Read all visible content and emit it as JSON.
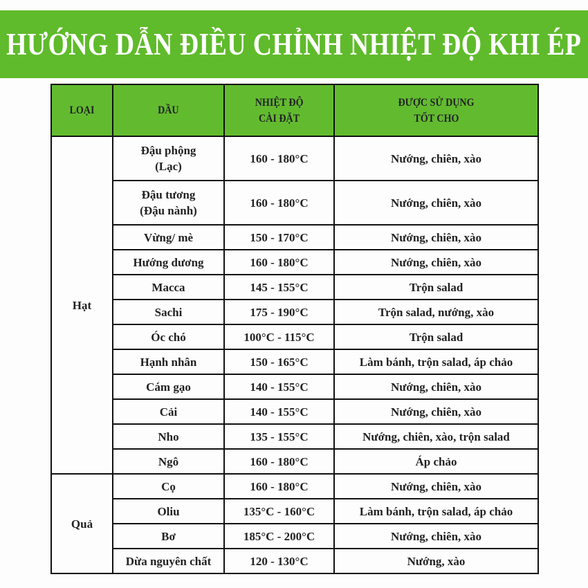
{
  "title": "HƯỚNG DẪN ĐIỀU CHỈNH NHIỆT ĐỘ KHI ÉP",
  "colors": {
    "banner": "#5fbb2b",
    "header": "#62bb2f"
  },
  "headers": {
    "loai": "LOẠI",
    "dau": "DẦU",
    "nhiet_do_1": "NHIỆT ĐỘ",
    "nhiet_do_2": "CÀI ĐẶT",
    "su_dung_1": "ĐƯỢC SỬ DỤNG",
    "su_dung_2": "TỐT CHO"
  },
  "groups": [
    {
      "loai": "Hạt",
      "rows": [
        {
          "dau": "Đậu phộng",
          "dau2": "(Lạc)",
          "nhiet_do": "160 - 180°C",
          "su_dung": "Nướng, chiên, xào"
        },
        {
          "dau": "Đậu tương",
          "dau2": "(Đậu nành)",
          "nhiet_do": "160 - 180°C",
          "su_dung": "Nướng, chiên, xào"
        },
        {
          "dau": "Vừng/ mè",
          "nhiet_do": "150 - 170°C",
          "su_dung": "Nướng, chiên, xào"
        },
        {
          "dau": "Hướng dương",
          "nhiet_do": "160 - 180°C",
          "su_dung": "Nướng, chiên, xào"
        },
        {
          "dau": "Macca",
          "nhiet_do": "145 - 155°C",
          "su_dung": "Trộn salad"
        },
        {
          "dau": "Sachi",
          "nhiet_do": "175 - 190°C",
          "su_dung": "Trộn salad, nướng, xào"
        },
        {
          "dau": "Óc chó",
          "nhiet_do": "100°C - 115°C",
          "su_dung": "Trộn salad"
        },
        {
          "dau": "Hạnh nhân",
          "nhiet_do": "150 - 165°C",
          "su_dung": "Làm bánh, trộn salad, áp chảo"
        },
        {
          "dau": "Cám gạo",
          "nhiet_do": "140 - 155°C",
          "su_dung": "Nướng, chiên, xào"
        },
        {
          "dau": "Cải",
          "nhiet_do": "140 - 155°C",
          "su_dung": "Nướng, chiên, xào"
        },
        {
          "dau": "Nho",
          "nhiet_do": "135 - 155°C",
          "su_dung": "Nướng, chiên, xào, trộn salad"
        },
        {
          "dau": "Ngô",
          "nhiet_do": "160 - 180°C",
          "su_dung": "Áp chảo"
        }
      ]
    },
    {
      "loai": "Quả",
      "rows": [
        {
          "dau": "Cọ",
          "nhiet_do": "160 - 180°C",
          "su_dung": "Nướng, chiên, xào"
        },
        {
          "dau": "Oliu",
          "nhiet_do": "135°C - 160°C",
          "su_dung": "Làm bánh, trộn salad, áp chảo"
        },
        {
          "dau": "Bơ",
          "nhiet_do": "185°C - 200°C",
          "su_dung": "Nướng, chiên, xào"
        },
        {
          "dau": "Dừa nguyên chất",
          "nhiet_do": "120 - 130°C",
          "su_dung": "Nướng, xào"
        }
      ]
    }
  ]
}
